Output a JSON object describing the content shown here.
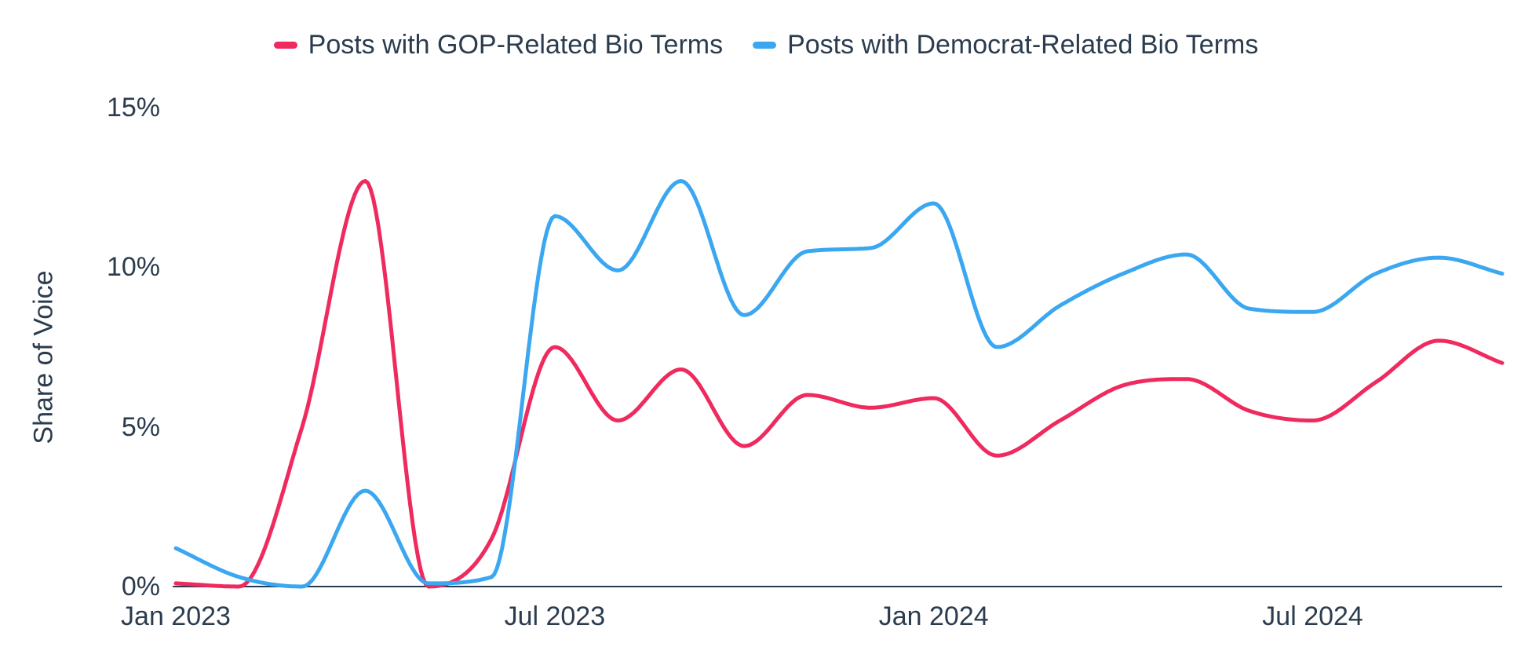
{
  "colors": {
    "gop": "#ef2a5e",
    "dem": "#3ba7f0",
    "text": "#2b3c4e",
    "axis": "#2b3c4e",
    "background": "#ffffff"
  },
  "chart_data": {
    "type": "line",
    "title": "",
    "xlabel": "",
    "ylabel": "Share of Voice",
    "ylim": [
      0,
      15
    ],
    "grid": false,
    "legend_position": "top",
    "x": [
      "Jan 2023",
      "Feb 2023",
      "Mar 2023",
      "Apr 2023",
      "May 2023",
      "Jun 2023",
      "Jul 2023",
      "Aug 2023",
      "Sep 2023",
      "Oct 2023",
      "Nov 2023",
      "Dec 2023",
      "Jan 2024",
      "Feb 2024",
      "Mar 2024",
      "Apr 2024",
      "May 2024",
      "Jun 2024",
      "Jul 2024",
      "Aug 2024",
      "Sep 2024",
      "Oct 2024"
    ],
    "xticks": [
      {
        "index": 0,
        "label": "Jan 2023"
      },
      {
        "index": 6,
        "label": "Jul 2023"
      },
      {
        "index": 12,
        "label": "Jan 2024"
      },
      {
        "index": 18,
        "label": "Jul 2024"
      }
    ],
    "yticks": [
      {
        "value": 0,
        "label": "0%"
      },
      {
        "value": 5,
        "label": "5%"
      },
      {
        "value": 10,
        "label": "10%"
      },
      {
        "value": 15,
        "label": "15%"
      }
    ],
    "series": [
      {
        "id": "gop",
        "name": "Posts with GOP-Related Bio Terms",
        "color": "#ef2a5e",
        "values": [
          0.1,
          0.0,
          5.0,
          12.7,
          0.0,
          1.5,
          7.5,
          5.2,
          6.8,
          4.4,
          6.0,
          5.6,
          5.9,
          4.1,
          5.2,
          6.3,
          6.5,
          5.5,
          5.2,
          6.4,
          7.7,
          7.0
        ]
      },
      {
        "id": "dem",
        "name": "Posts with Democrat-Related Bio Terms",
        "color": "#3ba7f0",
        "values": [
          1.2,
          0.3,
          0.0,
          3.0,
          0.1,
          0.3,
          11.6,
          9.9,
          12.7,
          8.5,
          10.5,
          10.6,
          12.0,
          7.5,
          8.8,
          9.8,
          10.4,
          8.7,
          8.6,
          9.8,
          10.3,
          9.8
        ]
      }
    ]
  }
}
